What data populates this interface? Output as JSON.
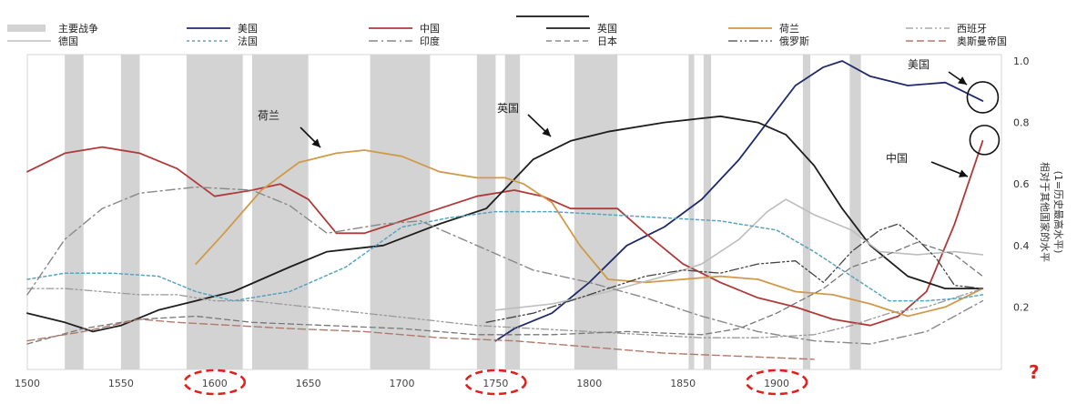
{
  "chart_data": {
    "type": "line",
    "x_ticks": [
      1500,
      1550,
      1600,
      1650,
      1700,
      1750,
      1800,
      1850,
      1900
    ],
    "y_ticks": [
      0.2,
      0.4,
      0.6,
      0.8,
      1.0
    ],
    "y_tick_labels": [
      "0.2",
      "0.4",
      "0.6",
      "0.8",
      "1.0"
    ],
    "xlim": [
      1500,
      2020
    ],
    "ylim": [
      0.0,
      1.0
    ],
    "ylabel_lines": [
      "相对于其他国家的水平",
      "(1=历史最高水平)"
    ],
    "highlighted_years": [
      "1600",
      "1750",
      "1900"
    ],
    "question_mark": "?",
    "wars": [
      [
        1520,
        1530
      ],
      [
        1550,
        1560
      ],
      [
        1585,
        1615
      ],
      [
        1620,
        1650
      ],
      [
        1683,
        1715
      ],
      [
        1740,
        1750
      ],
      [
        1755,
        1763
      ],
      [
        1792,
        1815
      ],
      [
        1853,
        1856
      ],
      [
        1861,
        1865
      ],
      [
        1914,
        1918
      ],
      [
        1939,
        1945
      ]
    ],
    "legend_rows": [
      [
        {
          "id": "wars",
          "label": "主要战争",
          "style": "war"
        },
        {
          "id": "usa",
          "label": "美国"
        },
        {
          "id": "china",
          "label": "中国"
        },
        {
          "id": "uk",
          "label": "英国"
        },
        {
          "id": "netherlands",
          "label": "荷兰"
        },
        {
          "id": "spain",
          "label": "西班牙"
        }
      ],
      [
        {
          "id": "germany",
          "label": "德国"
        },
        {
          "id": "france",
          "label": "法国"
        },
        {
          "id": "india",
          "label": "印度"
        },
        {
          "id": "japan",
          "label": "日本"
        },
        {
          "id": "russia",
          "label": "俄罗斯"
        },
        {
          "id": "ottoman",
          "label": "奥斯曼帝国"
        }
      ]
    ],
    "annotations": [
      {
        "id": "netherlands",
        "label": "荷兰"
      },
      {
        "id": "uk",
        "label": "英国"
      },
      {
        "id": "usa",
        "label": "美国"
      },
      {
        "id": "china",
        "label": "中国"
      }
    ],
    "series": [
      {
        "id": "usa",
        "name": "美国",
        "color": "#1f2a6b",
        "dash": "",
        "width": 1.8,
        "points": [
          [
            1750,
            0.09
          ],
          [
            1760,
            0.13
          ],
          [
            1780,
            0.18
          ],
          [
            1800,
            0.28
          ],
          [
            1820,
            0.4
          ],
          [
            1840,
            0.46
          ],
          [
            1860,
            0.55
          ],
          [
            1880,
            0.68
          ],
          [
            1895,
            0.8
          ],
          [
            1910,
            0.92
          ],
          [
            1925,
            0.98
          ],
          [
            1935,
            1.0
          ],
          [
            1950,
            0.95
          ],
          [
            1970,
            0.92
          ],
          [
            1990,
            0.93
          ],
          [
            2010,
            0.87
          ]
        ]
      },
      {
        "id": "china",
        "name": "中国",
        "color": "#b03a3a",
        "dash": "",
        "width": 1.8,
        "points": [
          [
            1500,
            0.64
          ],
          [
            1520,
            0.7
          ],
          [
            1540,
            0.72
          ],
          [
            1560,
            0.7
          ],
          [
            1580,
            0.65
          ],
          [
            1600,
            0.56
          ],
          [
            1620,
            0.58
          ],
          [
            1635,
            0.6
          ],
          [
            1650,
            0.55
          ],
          [
            1665,
            0.44
          ],
          [
            1680,
            0.44
          ],
          [
            1700,
            0.48
          ],
          [
            1720,
            0.52
          ],
          [
            1740,
            0.56
          ],
          [
            1760,
            0.58
          ],
          [
            1775,
            0.56
          ],
          [
            1790,
            0.52
          ],
          [
            1815,
            0.52
          ],
          [
            1830,
            0.44
          ],
          [
            1850,
            0.34
          ],
          [
            1870,
            0.28
          ],
          [
            1890,
            0.23
          ],
          [
            1910,
            0.2
          ],
          [
            1930,
            0.16
          ],
          [
            1950,
            0.14
          ],
          [
            1965,
            0.17
          ],
          [
            1980,
            0.25
          ],
          [
            1995,
            0.47
          ],
          [
            2010,
            0.74
          ]
        ]
      },
      {
        "id": "uk",
        "name": "英国",
        "color": "#1e1e1e",
        "dash": "",
        "width": 1.8,
        "points": [
          [
            1500,
            0.18
          ],
          [
            1520,
            0.15
          ],
          [
            1535,
            0.12
          ],
          [
            1550,
            0.14
          ],
          [
            1570,
            0.19
          ],
          [
            1590,
            0.22
          ],
          [
            1610,
            0.25
          ],
          [
            1640,
            0.33
          ],
          [
            1660,
            0.38
          ],
          [
            1690,
            0.4
          ],
          [
            1720,
            0.47
          ],
          [
            1745,
            0.52
          ],
          [
            1770,
            0.68
          ],
          [
            1790,
            0.74
          ],
          [
            1810,
            0.77
          ],
          [
            1840,
            0.8
          ],
          [
            1870,
            0.82
          ],
          [
            1890,
            0.8
          ],
          [
            1905,
            0.76
          ],
          [
            1920,
            0.66
          ],
          [
            1935,
            0.52
          ],
          [
            1950,
            0.4
          ],
          [
            1970,
            0.3
          ],
          [
            1990,
            0.26
          ],
          [
            2010,
            0.26
          ]
        ]
      },
      {
        "id": "netherlands",
        "name": "荷兰",
        "color": "#d09a4a",
        "dash": "",
        "width": 1.8,
        "points": [
          [
            1590,
            0.34
          ],
          [
            1605,
            0.44
          ],
          [
            1625,
            0.58
          ],
          [
            1645,
            0.67
          ],
          [
            1665,
            0.7
          ],
          [
            1680,
            0.71
          ],
          [
            1700,
            0.69
          ],
          [
            1720,
            0.64
          ],
          [
            1740,
            0.62
          ],
          [
            1755,
            0.62
          ],
          [
            1765,
            0.6
          ],
          [
            1780,
            0.54
          ],
          [
            1795,
            0.4
          ],
          [
            1810,
            0.29
          ],
          [
            1830,
            0.28
          ],
          [
            1850,
            0.29
          ],
          [
            1870,
            0.3
          ],
          [
            1890,
            0.29
          ],
          [
            1910,
            0.25
          ],
          [
            1930,
            0.24
          ],
          [
            1950,
            0.21
          ],
          [
            1970,
            0.17
          ],
          [
            1990,
            0.2
          ],
          [
            2010,
            0.26
          ]
        ]
      },
      {
        "id": "spain",
        "name": "西班牙",
        "color": "#999999",
        "dash": "8 3 2 3 2 3",
        "width": 1.3,
        "points": [
          [
            1500,
            0.26
          ],
          [
            1520,
            0.26
          ],
          [
            1540,
            0.25
          ],
          [
            1560,
            0.24
          ],
          [
            1580,
            0.24
          ],
          [
            1600,
            0.22
          ],
          [
            1620,
            0.22
          ],
          [
            1650,
            0.2
          ],
          [
            1680,
            0.18
          ],
          [
            1710,
            0.16
          ],
          [
            1740,
            0.14
          ],
          [
            1770,
            0.13
          ],
          [
            1800,
            0.12
          ],
          [
            1830,
            0.11
          ],
          [
            1860,
            0.1
          ],
          [
            1890,
            0.1
          ],
          [
            1920,
            0.11
          ],
          [
            1940,
            0.14
          ],
          [
            1960,
            0.18
          ],
          [
            1980,
            0.2
          ],
          [
            2000,
            0.24
          ],
          [
            2010,
            0.26
          ]
        ]
      },
      {
        "id": "germany",
        "name": "德国",
        "color": "#bdbdbd",
        "dash": "",
        "width": 1.6,
        "points": [
          [
            1750,
            0.19
          ],
          [
            1780,
            0.21
          ],
          [
            1810,
            0.25
          ],
          [
            1840,
            0.3
          ],
          [
            1860,
            0.34
          ],
          [
            1880,
            0.42
          ],
          [
            1895,
            0.51
          ],
          [
            1905,
            0.55
          ],
          [
            1920,
            0.5
          ],
          [
            1940,
            0.45
          ],
          [
            1955,
            0.38
          ],
          [
            1975,
            0.37
          ],
          [
            1995,
            0.38
          ],
          [
            2010,
            0.37
          ]
        ]
      },
      {
        "id": "france",
        "name": "法国",
        "color": "#5aa3c0",
        "dash": "3 3",
        "width": 1.5,
        "points": [
          [
            1500,
            0.29
          ],
          [
            1520,
            0.31
          ],
          [
            1545,
            0.31
          ],
          [
            1570,
            0.3
          ],
          [
            1590,
            0.25
          ],
          [
            1610,
            0.22
          ],
          [
            1640,
            0.25
          ],
          [
            1670,
            0.33
          ],
          [
            1700,
            0.46
          ],
          [
            1725,
            0.49
          ],
          [
            1750,
            0.51
          ],
          [
            1780,
            0.51
          ],
          [
            1810,
            0.5
          ],
          [
            1840,
            0.49
          ],
          [
            1870,
            0.48
          ],
          [
            1900,
            0.45
          ],
          [
            1920,
            0.38
          ],
          [
            1940,
            0.3
          ],
          [
            1960,
            0.22
          ],
          [
            1980,
            0.22
          ],
          [
            2000,
            0.23
          ],
          [
            2010,
            0.24
          ]
        ]
      },
      {
        "id": "india",
        "name": "印度",
        "color": "#888888",
        "dash": "10 4 2 4",
        "width": 1.4,
        "points": [
          [
            1500,
            0.24
          ],
          [
            1520,
            0.42
          ],
          [
            1540,
            0.52
          ],
          [
            1560,
            0.57
          ],
          [
            1590,
            0.59
          ],
          [
            1620,
            0.58
          ],
          [
            1640,
            0.53
          ],
          [
            1660,
            0.44
          ],
          [
            1690,
            0.47
          ],
          [
            1710,
            0.48
          ],
          [
            1740,
            0.4
          ],
          [
            1770,
            0.32
          ],
          [
            1800,
            0.28
          ],
          [
            1830,
            0.23
          ],
          [
            1860,
            0.17
          ],
          [
            1890,
            0.12
          ],
          [
            1920,
            0.09
          ],
          [
            1950,
            0.08
          ],
          [
            1980,
            0.12
          ],
          [
            2010,
            0.22
          ]
        ]
      },
      {
        "id": "japan",
        "name": "日本",
        "color": "#777777",
        "dash": "6 4",
        "width": 1.3,
        "points": [
          [
            1500,
            0.08
          ],
          [
            1530,
            0.13
          ],
          [
            1560,
            0.16
          ],
          [
            1590,
            0.17
          ],
          [
            1620,
            0.15
          ],
          [
            1660,
            0.14
          ],
          [
            1700,
            0.13
          ],
          [
            1740,
            0.11
          ],
          [
            1780,
            0.11
          ],
          [
            1820,
            0.12
          ],
          [
            1860,
            0.11
          ],
          [
            1880,
            0.13
          ],
          [
            1900,
            0.18
          ],
          [
            1925,
            0.26
          ],
          [
            1940,
            0.33
          ],
          [
            1955,
            0.36
          ],
          [
            1975,
            0.41
          ],
          [
            1995,
            0.37
          ],
          [
            2010,
            0.3
          ]
        ]
      },
      {
        "id": "russia",
        "name": "俄罗斯",
        "color": "#444444",
        "dash": "10 3 2 3 2 3",
        "width": 1.3,
        "points": [
          [
            1745,
            0.15
          ],
          [
            1770,
            0.18
          ],
          [
            1790,
            0.22
          ],
          [
            1810,
            0.26
          ],
          [
            1830,
            0.3
          ],
          [
            1850,
            0.32
          ],
          [
            1870,
            0.31
          ],
          [
            1890,
            0.34
          ],
          [
            1910,
            0.35
          ],
          [
            1925,
            0.28
          ],
          [
            1940,
            0.38
          ],
          [
            1955,
            0.45
          ],
          [
            1965,
            0.47
          ],
          [
            1975,
            0.42
          ],
          [
            1985,
            0.36
          ],
          [
            1995,
            0.27
          ],
          [
            2010,
            0.26
          ]
        ]
      },
      {
        "id": "ottoman",
        "name": "奥斯曼帝国",
        "color": "#b07a6a",
        "dash": "8 4",
        "width": 1.4,
        "points": [
          [
            1500,
            0.09
          ],
          [
            1530,
            0.12
          ],
          [
            1560,
            0.16
          ],
          [
            1580,
            0.15
          ],
          [
            1610,
            0.14
          ],
          [
            1640,
            0.13
          ],
          [
            1680,
            0.12
          ],
          [
            1720,
            0.1
          ],
          [
            1760,
            0.09
          ],
          [
            1800,
            0.07
          ],
          [
            1840,
            0.05
          ],
          [
            1880,
            0.04
          ],
          [
            1920,
            0.03
          ]
        ]
      }
    ]
  }
}
